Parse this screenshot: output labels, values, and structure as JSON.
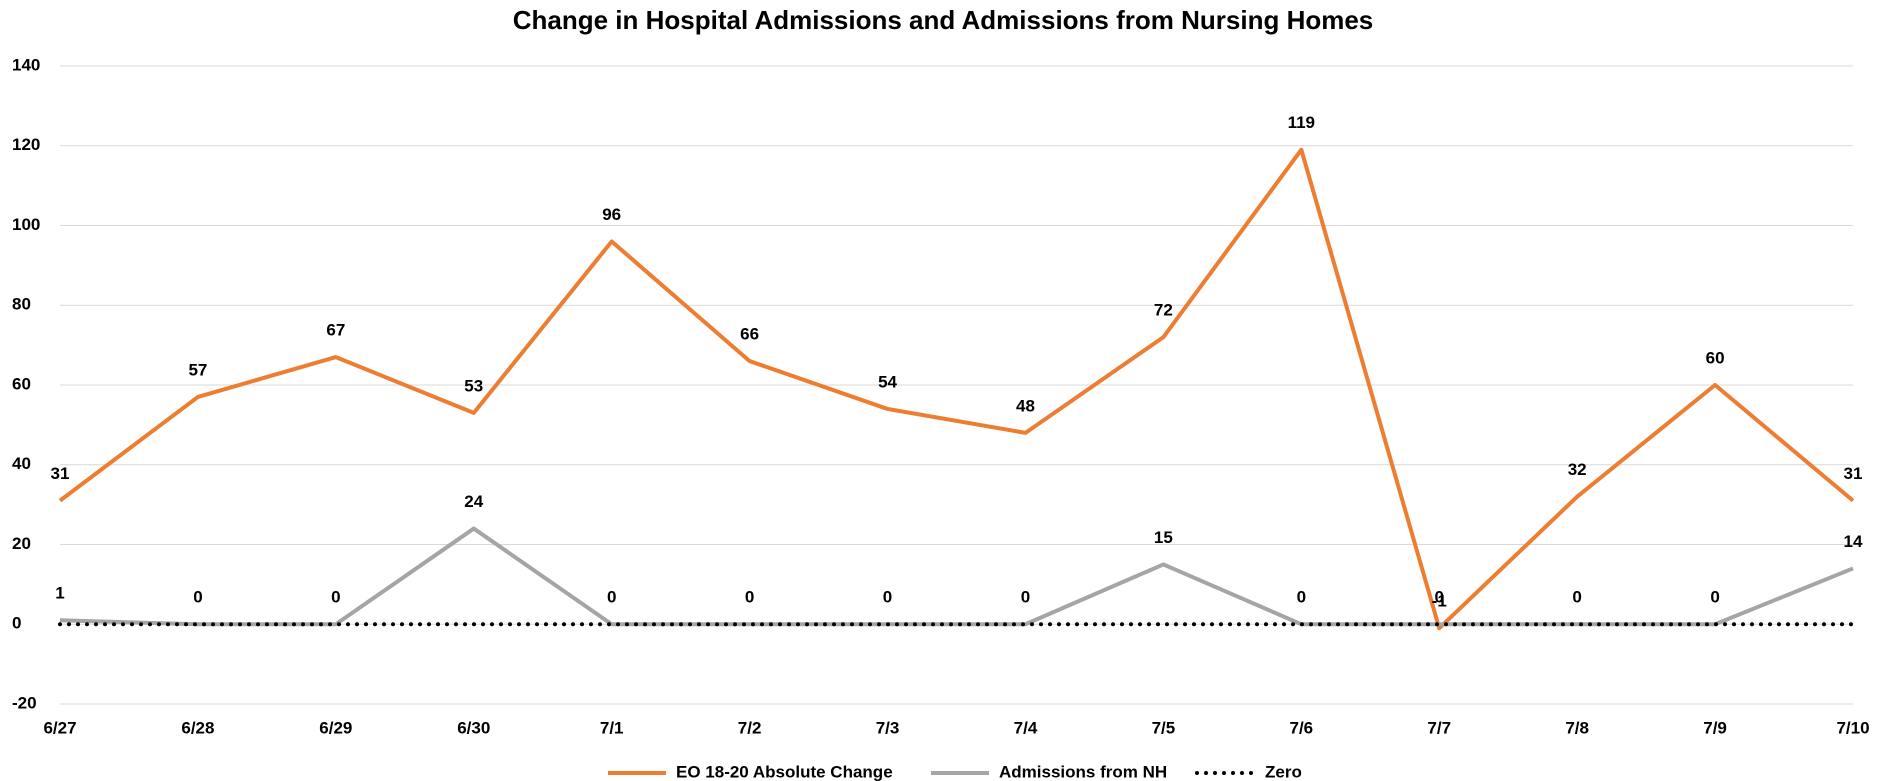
{
  "chart_data": {
    "type": "line",
    "title": "Change in Hospital Admissions and Admissions from Nursing Homes",
    "categories": [
      "6/27",
      "6/28",
      "6/29",
      "6/30",
      "7/1",
      "7/2",
      "7/3",
      "7/4",
      "7/5",
      "7/6",
      "7/7",
      "7/8",
      "7/9",
      "7/10"
    ],
    "series": [
      {
        "name": "EO 18-20 Absolute Change",
        "color": "#ed7d31",
        "line_style": "solid",
        "data_labels": true,
        "values": [
          31,
          57,
          67,
          53,
          96,
          66,
          54,
          48,
          72,
          119,
          -1,
          32,
          60,
          31
        ]
      },
      {
        "name": "Admissions from NH",
        "color": "#a5a5a5",
        "line_style": "solid",
        "data_labels": true,
        "values": [
          1,
          0,
          0,
          24,
          0,
          0,
          0,
          0,
          15,
          0,
          0,
          0,
          0,
          14
        ]
      },
      {
        "name": "Zero",
        "color": "#000000",
        "line_style": "dotted",
        "data_labels": false,
        "values": [
          0,
          0,
          0,
          0,
          0,
          0,
          0,
          0,
          0,
          0,
          0,
          0,
          0,
          0
        ]
      }
    ],
    "ylim": [
      -20,
      140
    ],
    "yticks": [
      -20,
      0,
      20,
      40,
      60,
      80,
      100,
      120,
      140
    ],
    "grid": true,
    "legend": "bottom"
  }
}
